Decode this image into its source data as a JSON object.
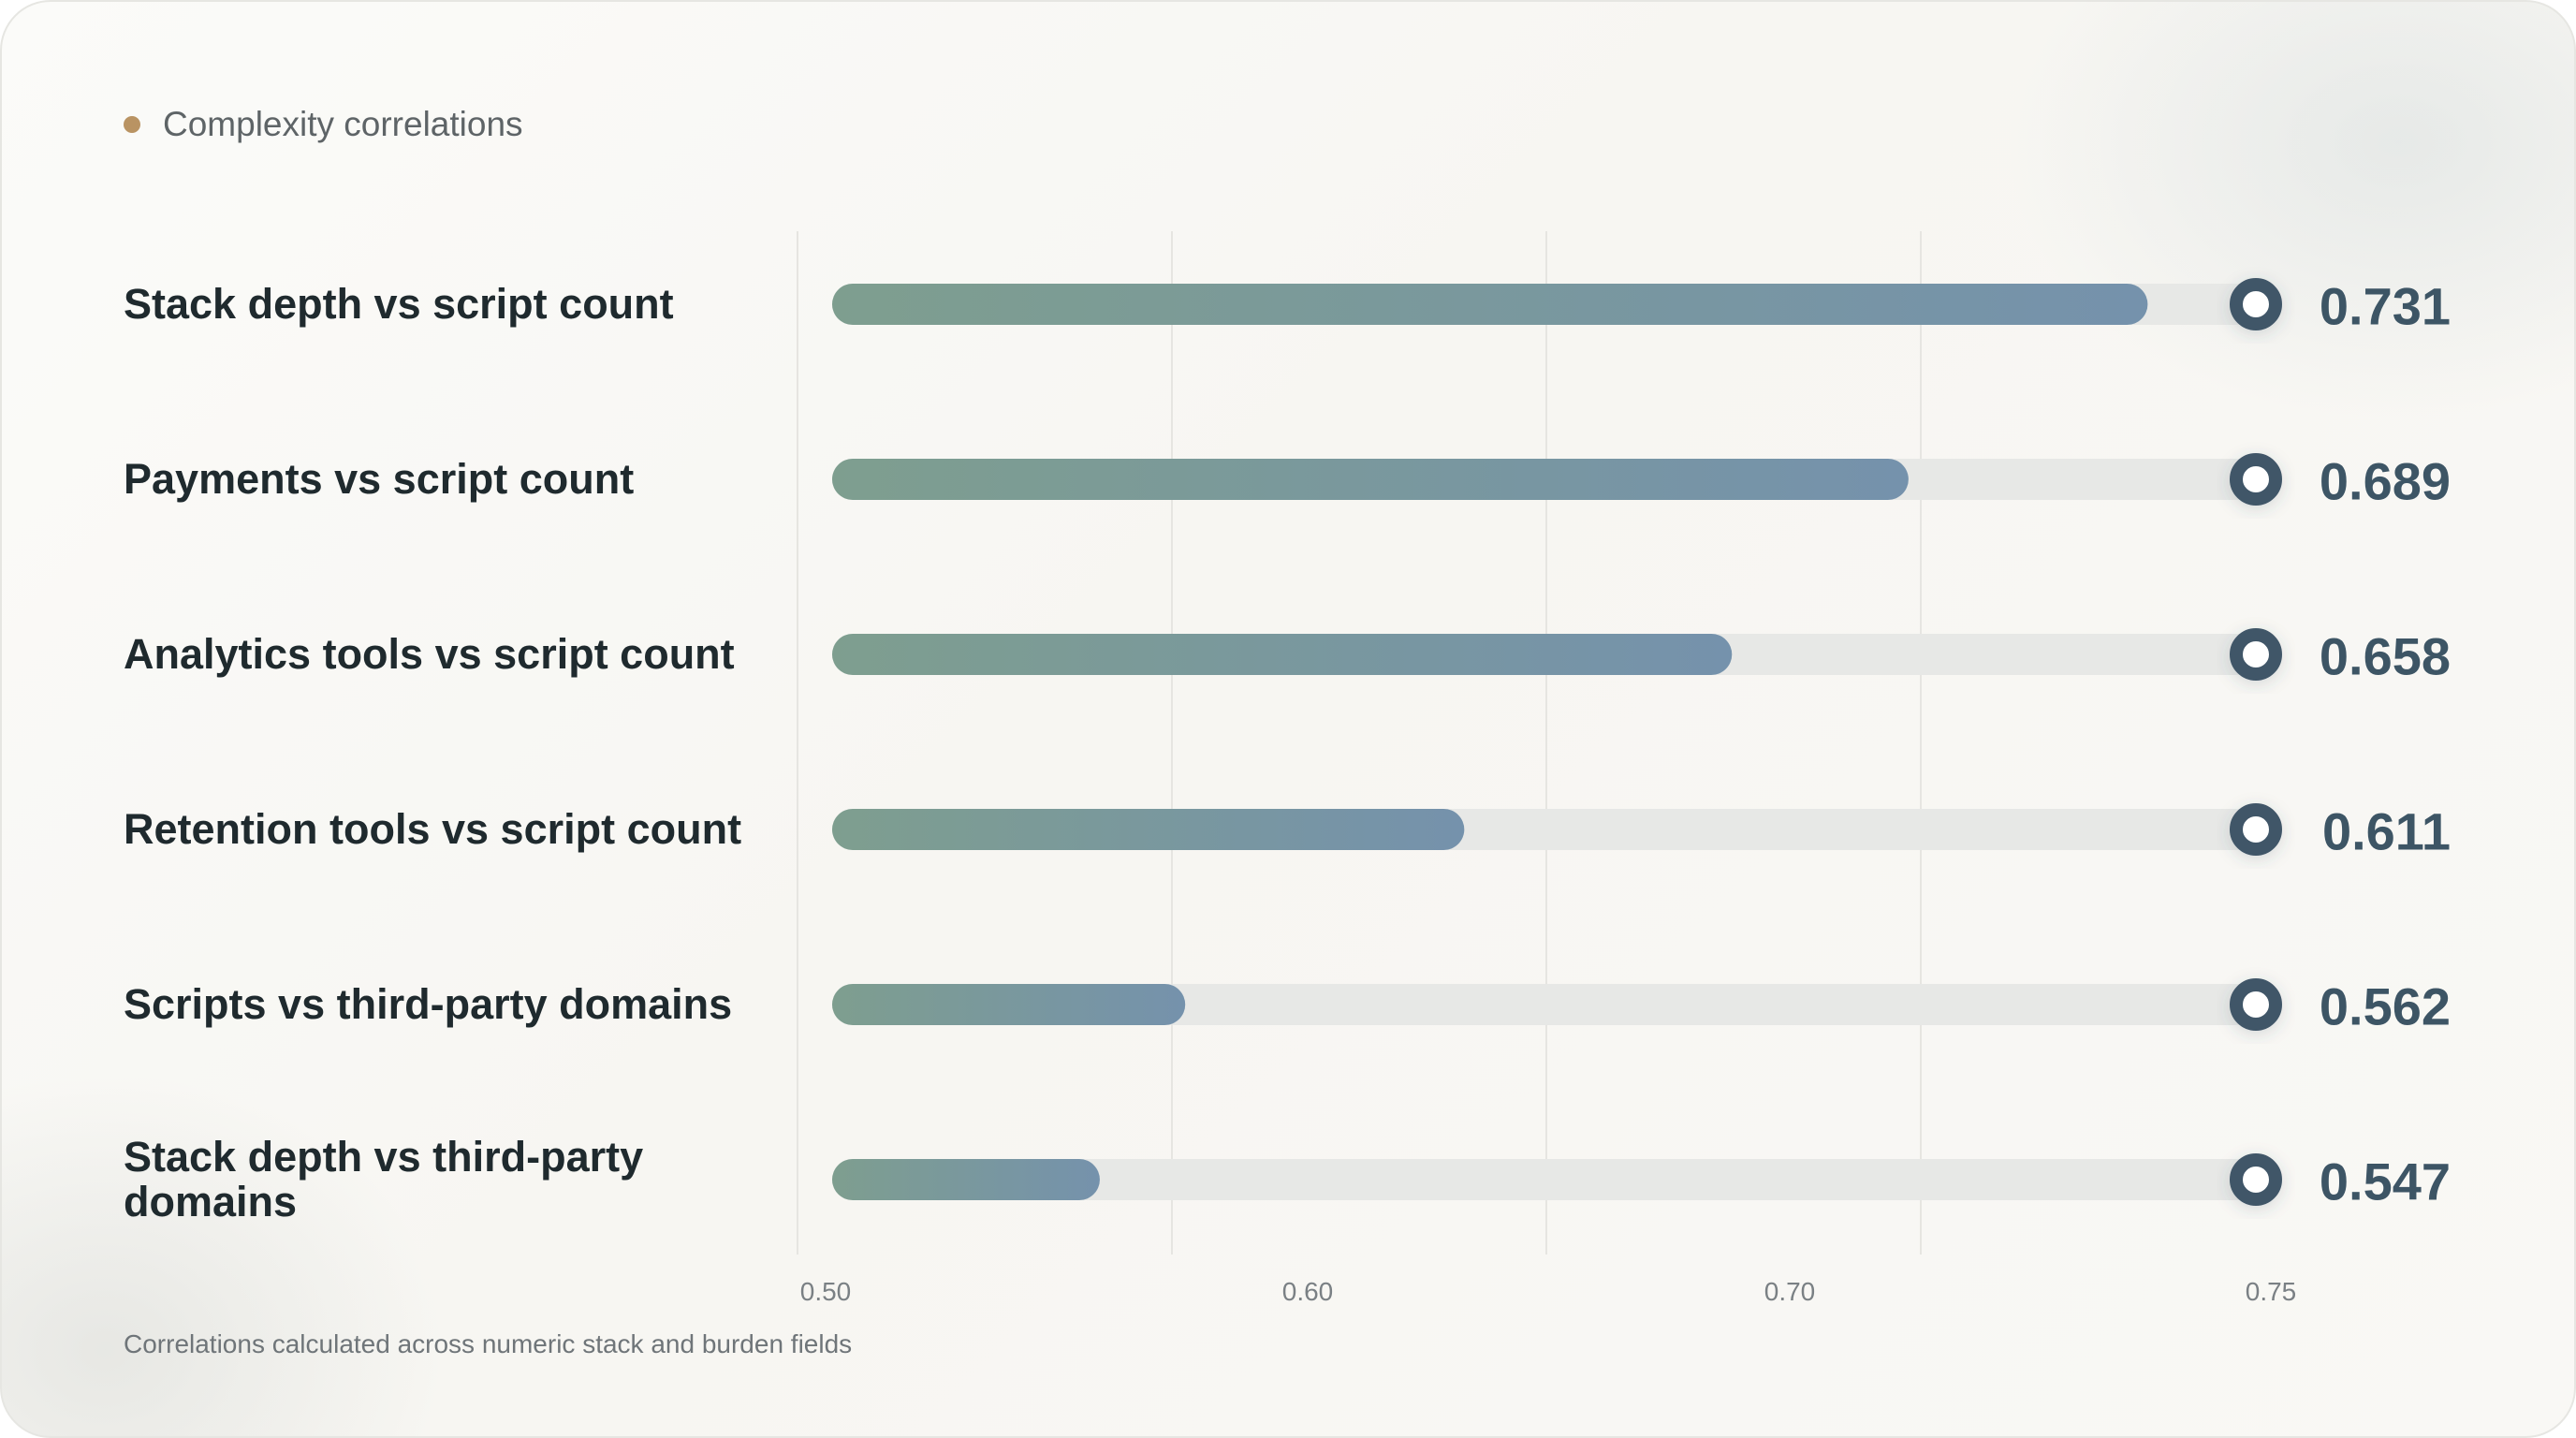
{
  "card": {
    "title": "Complexity correlations",
    "footnote": "Correlations calculated across numeric stack and burden fields"
  },
  "colors": {
    "title_dot": "#b99363",
    "bar_start": "#7e9e8f",
    "bar_end": "#7592ac",
    "track": "#e7e8e6",
    "marker": "#3f5668",
    "value_text": "#3d5565",
    "gridline": "#e6e5e1"
  },
  "chart_data": {
    "type": "bar",
    "orientation": "horizontal",
    "title": "Complexity correlations",
    "categories": [
      "Stack depth vs script count",
      "Payments vs script count",
      "Analytics tools vs script count",
      "Retention tools vs script count",
      "Scripts vs third-party domains",
      "Stack depth vs third-party domains"
    ],
    "values": [
      0.731,
      0.689,
      0.658,
      0.611,
      0.562,
      0.547
    ],
    "value_labels": [
      "0.731",
      "0.689",
      "0.658",
      "0.611",
      "0.562",
      "0.547"
    ],
    "xlim": [
      0.5,
      0.75
    ],
    "xticks": [
      "0.50",
      "0.60",
      "0.70",
      "0.75"
    ],
    "grid": true,
    "legend": "none"
  }
}
